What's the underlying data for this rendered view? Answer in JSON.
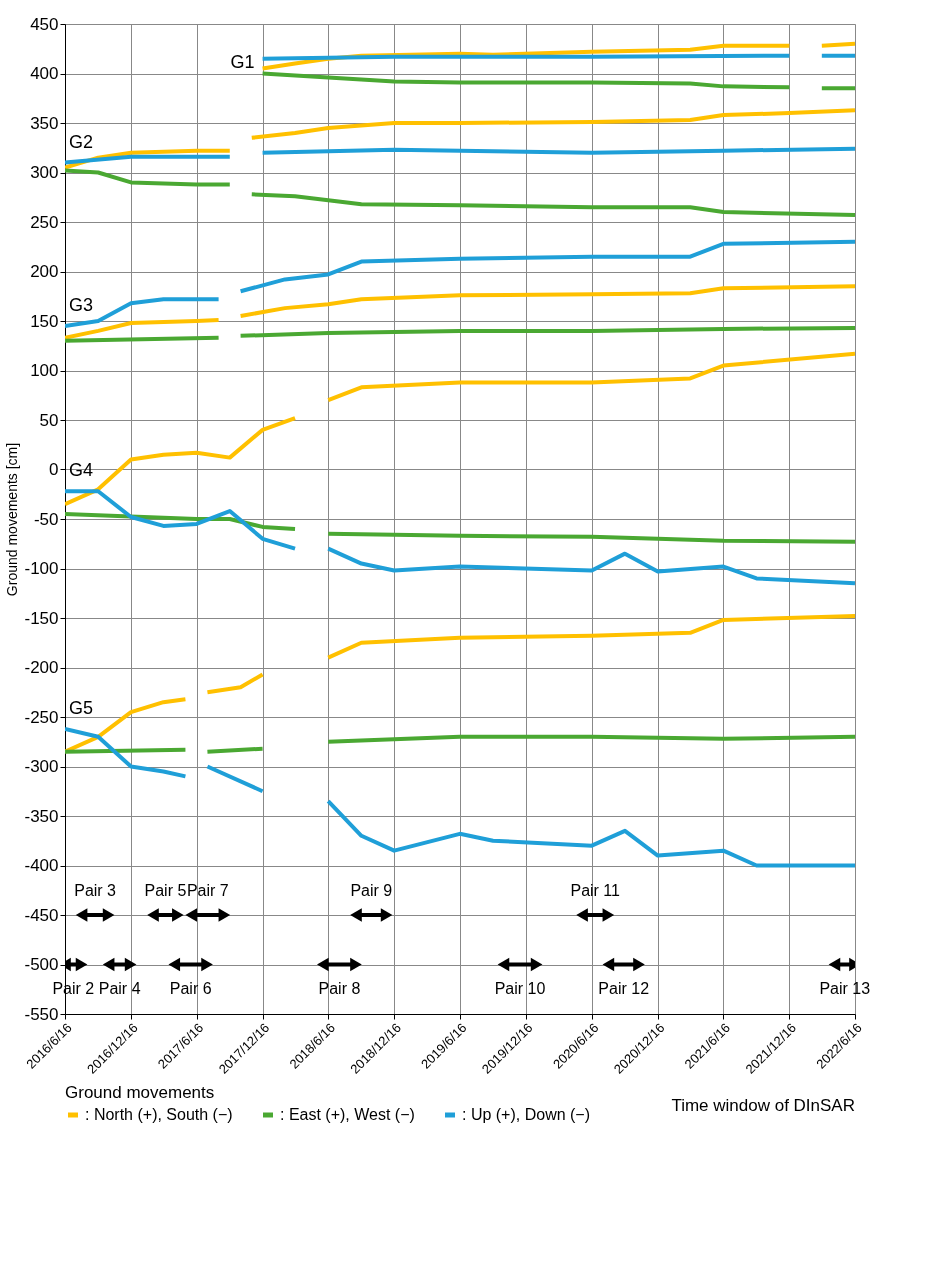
{
  "chart_data": {
    "type": "line",
    "ylabel": "Ground movements [cm]",
    "legend_title": "Ground movements",
    "legend": "bottom",
    "grid": true,
    "xlim": [
      "2016-06-16",
      "2022-06-16"
    ],
    "xticks": [
      {
        "value": "2016-06-16",
        "label": "2016/6/16"
      },
      {
        "value": "2016-12-16",
        "label": "2016/12/16"
      },
      {
        "value": "2017-06-16",
        "label": "2017/6/16"
      },
      {
        "value": "2017-12-16",
        "label": "2017/12/16"
      },
      {
        "value": "2018-06-16",
        "label": "2018/6/16"
      },
      {
        "value": "2018-12-16",
        "label": "2018/12/16"
      },
      {
        "value": "2019-06-16",
        "label": "2019/6/16"
      },
      {
        "value": "2019-12-16",
        "label": "2019/12/16"
      },
      {
        "value": "2020-06-16",
        "label": "2020/6/16"
      },
      {
        "value": "2020-12-16",
        "label": "2020/12/16"
      },
      {
        "value": "2021-06-16",
        "label": "2021/6/16"
      },
      {
        "value": "2021-12-16",
        "label": "2021/12/16"
      },
      {
        "value": "2022-06-16",
        "label": "2022/6/16"
      }
    ],
    "ylim": [
      -550,
      450
    ],
    "yticks": [
      -550,
      -500,
      -450,
      -400,
      -350,
      -300,
      -250,
      -200,
      -150,
      -100,
      -50,
      0,
      50,
      100,
      150,
      200,
      250,
      300,
      350,
      400,
      450
    ],
    "series": [
      {
        "name": ": North (+), South (−)",
        "color": "#ffc000",
        "x": [
          "2017-12-16",
          "2018-03-16",
          "2018-06-16",
          "2018-09-16",
          "2019-06-16",
          "2019-09-16",
          "2020-06-16",
          "2021-03-16",
          "2021-06-16",
          "2021-12-16",
          "2022-01-16",
          "2022-03-16",
          "2022-06-16"
        ],
        "values": [
          405,
          410,
          415,
          418,
          420,
          419,
          422,
          424,
          428,
          428,
          null,
          428,
          430
        ]
      },
      {
        "name": ": East (+), West (−)",
        "color": "#4aa832",
        "x": [
          "2017-12-16",
          "2018-06-16",
          "2018-12-16",
          "2019-06-16",
          "2020-06-16",
          "2021-03-16",
          "2021-06-16",
          "2021-12-16",
          "2022-01-16",
          "2022-03-16",
          "2022-06-16"
        ],
        "values": [
          400,
          396,
          392,
          391,
          391,
          390,
          387,
          386,
          null,
          385,
          385
        ]
      },
      {
        "name": ": Up (+), Down (−)",
        "color": "#1f9fd8",
        "x": [
          "2017-12-16",
          "2018-12-16",
          "2020-06-16",
          "2021-12-16",
          "2022-01-16",
          "2022-03-16",
          "2022-06-16"
        ],
        "values": [
          415,
          417,
          417,
          418,
          null,
          418,
          418
        ]
      },
      {
        "color": "#ffc000",
        "x": [
          "2016-06-16",
          "2016-09-16",
          "2016-12-16",
          "2017-06-16",
          "2017-09-16",
          "2017-10-16",
          "2017-11-16",
          "2018-03-16",
          "2018-06-16",
          "2018-12-16",
          "2019-06-16",
          "2020-06-16",
          "2021-03-16",
          "2021-06-16",
          "2021-12-16",
          "2022-06-16"
        ],
        "values": [
          305,
          315,
          320,
          322,
          322,
          null,
          335,
          340,
          345,
          350,
          350,
          351,
          353,
          358,
          360,
          363
        ]
      },
      {
        "color": "#4aa832",
        "x": [
          "2016-06-16",
          "2016-09-16",
          "2016-12-16",
          "2017-06-16",
          "2017-09-16",
          "2017-10-16",
          "2017-11-16",
          "2018-03-16",
          "2018-09-16",
          "2019-06-16",
          "2020-06-16",
          "2021-03-16",
          "2021-06-16",
          "2022-06-16"
        ],
        "values": [
          302,
          300,
          290,
          288,
          288,
          null,
          278,
          276,
          268,
          267,
          265,
          265,
          260,
          257
        ]
      },
      {
        "color": "#1f9fd8",
        "x": [
          "2016-06-16",
          "2016-12-16",
          "2017-09-16",
          "2017-10-16",
          "2017-12-16",
          "2018-12-16",
          "2019-06-16",
          "2020-06-16",
          "2021-06-16",
          "2022-06-16"
        ],
        "values": [
          310,
          316,
          316,
          null,
          320,
          323,
          322,
          320,
          322,
          324
        ]
      },
      {
        "color": "#ffc000",
        "x": [
          "2016-06-16",
          "2016-09-16",
          "2016-12-16",
          "2017-06-16",
          "2017-08-16",
          "2017-09-16",
          "2017-10-16",
          "2018-02-16",
          "2018-06-16",
          "2018-09-16",
          "2019-06-16",
          "2020-06-16",
          "2021-03-16",
          "2021-06-16",
          "2022-06-16"
        ],
        "values": [
          133,
          140,
          148,
          150,
          151,
          null,
          155,
          163,
          167,
          172,
          176,
          177,
          178,
          183,
          185
        ]
      },
      {
        "color": "#4aa832",
        "x": [
          "2016-06-16",
          "2017-08-16",
          "2017-09-16",
          "2017-10-16",
          "2018-06-16",
          "2019-06-16",
          "2020-06-16",
          "2021-06-16",
          "2022-06-16"
        ],
        "values": [
          130,
          133,
          null,
          135,
          138,
          140,
          140,
          142,
          143
        ]
      },
      {
        "color": "#1f9fd8",
        "x": [
          "2016-06-16",
          "2016-09-16",
          "2016-12-16",
          "2017-03-16",
          "2017-08-16",
          "2017-09-16",
          "2017-10-16",
          "2018-02-16",
          "2018-06-16",
          "2018-09-16",
          "2019-06-16",
          "2020-06-16",
          "2021-03-16",
          "2021-06-16",
          "2022-06-16"
        ],
        "values": [
          145,
          150,
          168,
          172,
          172,
          null,
          180,
          192,
          197,
          210,
          213,
          215,
          215,
          228,
          230
        ]
      },
      {
        "color": "#ffc000",
        "x": [
          "2016-06-16",
          "2016-09-16",
          "2016-12-16",
          "2017-03-16",
          "2017-06-16",
          "2017-09-16",
          "2017-12-16",
          "2018-03-16",
          "2018-04-16",
          "2018-06-16",
          "2018-09-16",
          "2019-06-16",
          "2020-06-16",
          "2021-03-16",
          "2021-06-16",
          "2022-06-16"
        ],
        "values": [
          -35,
          -20,
          10,
          15,
          17,
          12,
          40,
          52,
          null,
          70,
          83,
          88,
          88,
          92,
          105,
          117
        ]
      },
      {
        "color": "#4aa832",
        "x": [
          "2016-06-16",
          "2017-06-16",
          "2017-09-16",
          "2017-12-16",
          "2018-03-16",
          "2018-04-16",
          "2018-06-16",
          "2019-06-16",
          "2020-06-16",
          "2021-06-16",
          "2022-06-16"
        ],
        "values": [
          -45,
          -50,
          -50,
          -58,
          -60,
          null,
          -65,
          -67,
          -68,
          -72,
          -73
        ]
      },
      {
        "color": "#1f9fd8",
        "x": [
          "2016-06-16",
          "2016-09-16",
          "2016-12-16",
          "2017-03-16",
          "2017-06-16",
          "2017-09-16",
          "2017-12-16",
          "2018-03-16",
          "2018-04-16",
          "2018-06-16",
          "2018-09-16",
          "2018-12-16",
          "2019-06-16",
          "2020-06-16",
          "2020-09-16",
          "2020-12-16",
          "2021-06-16",
          "2021-09-16",
          "2022-06-16"
        ],
        "values": [
          -22,
          -22,
          -48,
          -57,
          -55,
          -42,
          -70,
          -80,
          null,
          -80,
          -95,
          -102,
          -98,
          -102,
          -85,
          -103,
          -98,
          -110,
          -115
        ]
      },
      {
        "color": "#ffc000",
        "x": [
          "2016-06-16",
          "2016-09-16",
          "2016-12-16",
          "2017-03-16",
          "2017-05-16",
          "2017-06-16",
          "2017-07-16",
          "2017-10-16",
          "2017-12-16",
          "2018-03-16",
          "2018-06-16",
          "2018-09-16",
          "2019-06-16",
          "2020-06-16",
          "2021-03-16",
          "2021-06-16",
          "2022-06-16"
        ],
        "values": [
          -285,
          -270,
          -245,
          -235,
          -232,
          null,
          -225,
          -220,
          -207,
          null,
          -190,
          -175,
          -170,
          -168,
          -165,
          -152,
          -148
        ]
      },
      {
        "color": "#4aa832",
        "x": [
          "2016-06-16",
          "2017-05-16",
          "2017-06-16",
          "2017-07-16",
          "2017-12-16",
          "2018-03-16",
          "2018-06-16",
          "2019-06-16",
          "2020-06-16",
          "2021-06-16",
          "2022-06-16"
        ],
        "values": [
          -285,
          -283,
          null,
          -285,
          -282,
          null,
          -275,
          -270,
          -270,
          -272,
          -270
        ]
      },
      {
        "color": "#1f9fd8",
        "x": [
          "2016-06-16",
          "2016-09-16",
          "2016-12-16",
          "2017-03-16",
          "2017-05-16",
          "2017-06-16",
          "2017-07-16",
          "2017-12-16",
          "2018-03-16",
          "2018-06-16",
          "2018-09-16",
          "2018-12-16",
          "2019-06-16",
          "2019-09-16",
          "2020-06-16",
          "2020-09-16",
          "2020-12-16",
          "2021-06-16",
          "2021-09-16",
          "2022-06-16"
        ],
        "values": [
          -262,
          -270,
          -300,
          -305,
          -310,
          null,
          -300,
          -325,
          null,
          -335,
          -370,
          -385,
          -368,
          -375,
          -380,
          -365,
          -390,
          -385,
          -400,
          -400
        ]
      },
      {
        "name": "Pair 3",
        "color": "#000000",
        "marker": "triangle",
        "x": [
          "2016-08-01",
          "2016-10-15"
        ],
        "values": [
          -450,
          -450
        ]
      },
      {
        "name": "Pair 5",
        "color": "#000000",
        "marker": "triangle",
        "x": [
          "2017-02-15",
          "2017-04-25"
        ],
        "values": [
          -450,
          -450
        ]
      },
      {
        "name": "Pair 7",
        "color": "#000000",
        "marker": "triangle",
        "x": [
          "2017-06-01",
          "2017-09-01"
        ],
        "values": [
          -450,
          -450
        ]
      },
      {
        "name": "Pair 9",
        "color": "#000000",
        "marker": "triangle",
        "x": [
          "2018-09-01",
          "2018-11-25"
        ],
        "values": [
          -450,
          -450
        ]
      },
      {
        "name": "Pair 11",
        "color": "#000000",
        "marker": "triangle",
        "x": [
          "2020-05-20",
          "2020-08-01"
        ],
        "values": [
          -450,
          -450
        ]
      },
      {
        "name": "Pair 2",
        "color": "#000000",
        "marker": "triangle",
        "x": [
          "2016-06-16",
          "2016-08-01"
        ],
        "values": [
          -500,
          -500
        ]
      },
      {
        "name": "Pair 4",
        "color": "#000000",
        "marker": "triangle",
        "x": [
          "2016-10-15",
          "2016-12-15"
        ],
        "values": [
          -500,
          -500
        ]
      },
      {
        "name": "Pair 6",
        "color": "#000000",
        "marker": "triangle",
        "x": [
          "2017-04-15",
          "2017-07-15"
        ],
        "values": [
          -500,
          -500
        ]
      },
      {
        "name": "Pair 8",
        "color": "#000000",
        "marker": "triangle",
        "x": [
          "2018-06-01",
          "2018-09-01"
        ],
        "values": [
          -500,
          -500
        ]
      },
      {
        "name": "Pair 10",
        "color": "#000000",
        "marker": "triangle",
        "x": [
          "2019-10-15",
          "2020-01-15"
        ],
        "values": [
          -500,
          -500
        ]
      },
      {
        "name": "Pair 12",
        "color": "#000000",
        "marker": "triangle",
        "x": [
          "2020-08-01",
          "2020-10-25"
        ],
        "values": [
          -500,
          -500
        ]
      },
      {
        "name": "Pair 13",
        "color": "#000000",
        "marker": "triangle",
        "x": [
          "2022-04-20",
          "2022-06-16"
        ],
        "values": [
          -500,
          -500
        ]
      }
    ],
    "annotations": [
      "G1",
      "G2",
      "G3",
      "G4",
      "G5",
      "Time window of DInSAR"
    ]
  }
}
